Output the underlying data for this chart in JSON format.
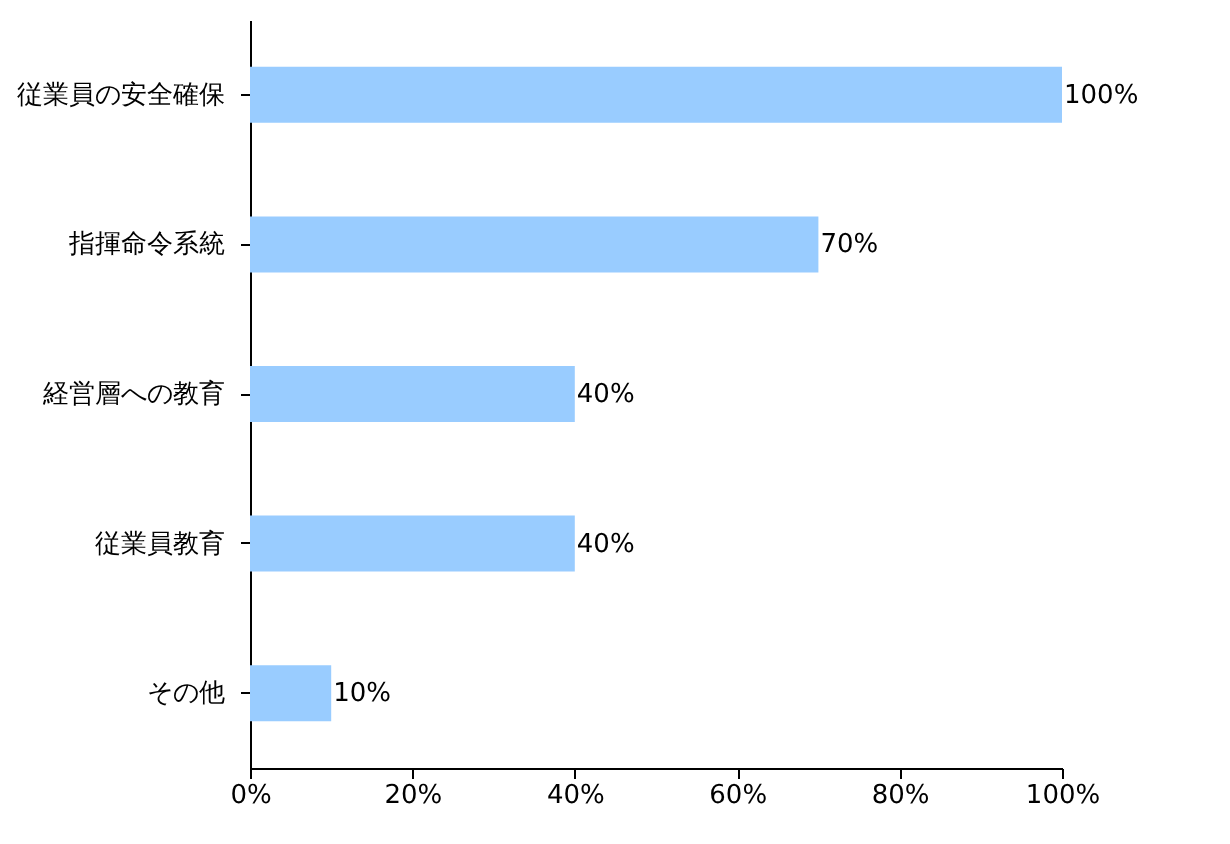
{
  "chart_data": {
    "type": "bar",
    "orientation": "horizontal",
    "categories": [
      "従業員の安全確保",
      "指揮命令系統",
      "経営層への教育",
      "従業員教育",
      "その他"
    ],
    "values": [
      100,
      70,
      40,
      40,
      10
    ],
    "value_labels": [
      "100%",
      "70%",
      "40%",
      "40%",
      "10%"
    ],
    "color": "#99ccff",
    "xlim": [
      0,
      100
    ],
    "xticks": [
      {
        "value": 0,
        "label": "0%"
      },
      {
        "value": 20,
        "label": "20%"
      },
      {
        "value": 40,
        "label": "40%"
      },
      {
        "value": 60,
        "label": "60%"
      },
      {
        "value": 80,
        "label": "80%"
      },
      {
        "value": 100,
        "label": "100%"
      }
    ],
    "grid": false
  }
}
